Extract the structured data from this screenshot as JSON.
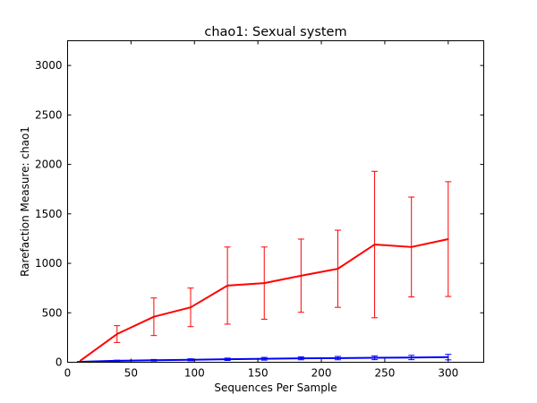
{
  "chart_data": {
    "type": "line",
    "title": "chao1: Sexual system",
    "xlabel": "Sequences Per Sample",
    "ylabel": "Rarefaction Measure: chao1",
    "xlim": [
      0,
      328
    ],
    "ylim": [
      0,
      3250
    ],
    "xticks": [
      0,
      50,
      100,
      150,
      200,
      250,
      300
    ],
    "yticks": [
      0,
      500,
      1000,
      1500,
      2000,
      2500,
      3000
    ],
    "grid": false,
    "legend": "none",
    "series": [
      {
        "color": "#ff0000",
        "x": [
          10,
          39,
          68,
          97,
          126,
          155,
          184,
          213,
          242,
          271,
          300
        ],
        "y": [
          15,
          285,
          460,
          555,
          775,
          800,
          875,
          945,
          1190,
          1165,
          1245
        ],
        "err": [
          0,
          85,
          190,
          195,
          390,
          365,
          370,
          390,
          740,
          505,
          580
        ]
      },
      {
        "color": "#0000ff",
        "x": [
          10,
          39,
          68,
          97,
          126,
          155,
          184,
          213,
          242,
          271,
          300
        ],
        "y": [
          5,
          15,
          20,
          25,
          30,
          35,
          40,
          42,
          45,
          48,
          52
        ],
        "err": [
          3,
          6,
          8,
          10,
          12,
          14,
          15,
          17,
          19,
          22,
          28
        ]
      }
    ]
  }
}
